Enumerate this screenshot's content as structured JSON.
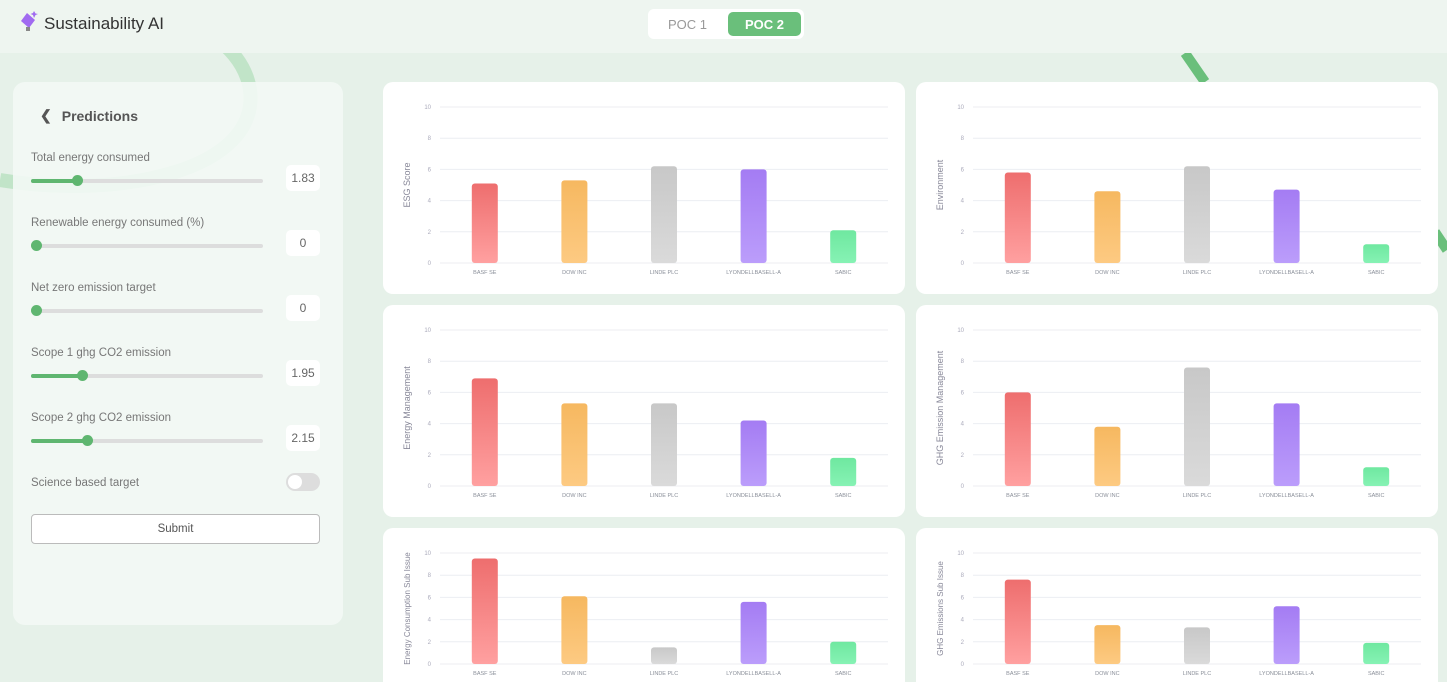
{
  "app": {
    "title": "Sustainability AI",
    "tabs": [
      {
        "label": "POC 1",
        "active": false
      },
      {
        "label": "POC 2",
        "active": true
      }
    ],
    "accent": "#6abf7b"
  },
  "panel": {
    "title": "Predictions",
    "sliders": [
      {
        "label": "Total energy consumed",
        "value": "1.83",
        "fraction": 0.2
      },
      {
        "label": "Renewable energy consumed (%)",
        "value": "0",
        "fraction": 0
      },
      {
        "label": "Net zero emission target",
        "value": "0",
        "fraction": 0
      },
      {
        "label": "Scope 1 ghg CO2 emission",
        "value": "1.95",
        "fraction": 0.22
      },
      {
        "label": "Scope 2 ghg CO2 emission",
        "value": "2.15",
        "fraction": 0.24
      }
    ],
    "toggle": {
      "label": "Science based target",
      "on": false
    },
    "submit": "Submit"
  },
  "chart_data": [
    {
      "type": "bar",
      "ylabel": "ESG Score",
      "categories": [
        "BASF SE",
        "DOW INC",
        "LINDE PLC",
        "LYONDELLBASELL-A",
        "SABIC"
      ],
      "values": [
        5.1,
        5.3,
        6.2,
        6.0,
        2.1
      ],
      "ylim": [
        0,
        10
      ],
      "yticks": [
        "0",
        "2",
        "4",
        "6",
        "8",
        "10"
      ]
    },
    {
      "type": "bar",
      "ylabel": "Environment",
      "categories": [
        "BASF SE",
        "DOW INC",
        "LINDE PLC",
        "LYONDELLBASELL-A",
        "SABIC"
      ],
      "values": [
        5.8,
        4.6,
        6.2,
        4.7,
        1.2
      ],
      "ylim": [
        0,
        10
      ],
      "yticks": [
        "0",
        "2",
        "4",
        "6",
        "8",
        "10"
      ]
    },
    {
      "type": "bar",
      "ylabel": "Energy Management",
      "categories": [
        "BASF SE",
        "DOW INC",
        "LINDE PLC",
        "LYONDELLBASELL-A",
        "SABIC"
      ],
      "values": [
        6.9,
        5.3,
        5.3,
        4.2,
        1.8
      ],
      "ylim": [
        0,
        10
      ],
      "yticks": [
        "0",
        "2",
        "4",
        "6",
        "8",
        "10"
      ]
    },
    {
      "type": "bar",
      "ylabel": "GHG Emission Management",
      "categories": [
        "BASF SE",
        "DOW INC",
        "LINDE PLC",
        "LYONDELLBASELL-A",
        "SABIC"
      ],
      "values": [
        6.0,
        3.8,
        7.6,
        5.3,
        1.2
      ],
      "ylim": [
        0,
        10
      ],
      "yticks": [
        "0",
        "2",
        "4",
        "6",
        "8",
        "10"
      ]
    },
    {
      "type": "bar",
      "ylabel": "Energy Consumption Sub Issue",
      "categories": [
        "BASF SE",
        "DOW INC",
        "LINDE PLC",
        "LYONDELLBASELL-A",
        "SABIC"
      ],
      "values": [
        9.5,
        6.1,
        1.5,
        5.6,
        2.0
      ],
      "ylim": [
        0,
        10
      ],
      "yticks": [
        "0",
        "2",
        "4",
        "6",
        "8",
        "10"
      ]
    },
    {
      "type": "bar",
      "ylabel": "GHG Emissions Sub Issue",
      "categories": [
        "BASF SE",
        "DOW INC",
        "LINDE PLC",
        "LYONDELLBASELL-A",
        "SABIC"
      ],
      "values": [
        7.6,
        3.5,
        3.3,
        5.2,
        1.9
      ],
      "ylim": [
        0,
        10
      ],
      "yticks": [
        "0",
        "2",
        "4",
        "6",
        "8",
        "10"
      ]
    }
  ],
  "bar_colors": [
    [
      "#ee6e6e",
      "#ffa0a0"
    ],
    [
      "#f6b860",
      "#fdca82"
    ],
    [
      "#c8c8c8",
      "#dadada"
    ],
    [
      "#a47cf3",
      "#bb9dfb"
    ],
    [
      "#6fe8a0",
      "#86f2b4"
    ]
  ]
}
